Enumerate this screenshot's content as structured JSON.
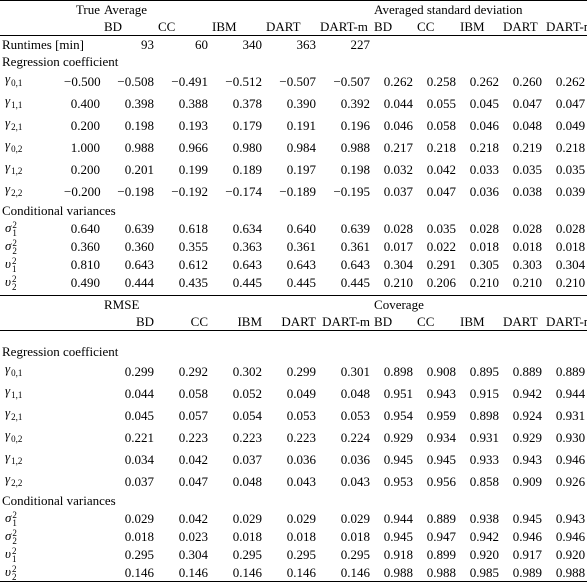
{
  "top": {
    "header": {
      "true": "True",
      "group_left": "Average",
      "group_right": "Averaged standard deviation",
      "columns_left": [
        "BD",
        "CC",
        "IBM",
        "DART",
        "DART-m"
      ],
      "columns_right": [
        "BD",
        "CC",
        "IBM",
        "DART",
        "DART-m"
      ]
    },
    "runtimes": {
      "label": "Runtimes [min]",
      "values": [
        "93",
        "60",
        "340",
        "363",
        "227"
      ]
    },
    "sections": [
      {
        "title": "Regression coefficient",
        "rows": [
          {
            "label": {
              "sym": "γ",
              "sub": "0,1"
            },
            "true": "−0.500",
            "left": [
              "−0.508",
              "−0.491",
              "−0.512",
              "−0.507",
              "−0.507"
            ],
            "right": [
              "0.262",
              "0.258",
              "0.262",
              "0.260",
              "0.262"
            ]
          },
          {
            "label": {
              "sym": "γ",
              "sub": "1,1"
            },
            "true": "0.400",
            "left": [
              "0.398",
              "0.388",
              "0.378",
              "0.390",
              "0.392"
            ],
            "right": [
              "0.044",
              "0.055",
              "0.045",
              "0.047",
              "0.047"
            ]
          },
          {
            "label": {
              "sym": "γ",
              "sub": "2,1"
            },
            "true": "0.200",
            "left": [
              "0.198",
              "0.193",
              "0.179",
              "0.191",
              "0.196"
            ],
            "right": [
              "0.046",
              "0.058",
              "0.046",
              "0.048",
              "0.049"
            ]
          },
          {
            "label": {
              "sym": "γ",
              "sub": "0,2"
            },
            "true": "1.000",
            "left": [
              "0.988",
              "0.966",
              "0.980",
              "0.984",
              "0.988"
            ],
            "right": [
              "0.217",
              "0.218",
              "0.218",
              "0.219",
              "0.218"
            ]
          },
          {
            "label": {
              "sym": "γ",
              "sub": "1,2"
            },
            "true": "0.200",
            "left": [
              "0.201",
              "0.199",
              "0.189",
              "0.197",
              "0.198"
            ],
            "right": [
              "0.032",
              "0.042",
              "0.033",
              "0.035",
              "0.035"
            ]
          },
          {
            "label": {
              "sym": "γ",
              "sub": "2,2"
            },
            "true": "−0.200",
            "left": [
              "−0.198",
              "−0.192",
              "−0.174",
              "−0.189",
              "−0.195"
            ],
            "right": [
              "0.037",
              "0.047",
              "0.036",
              "0.038",
              "0.039"
            ]
          }
        ]
      },
      {
        "title": "Conditional variances",
        "rows": [
          {
            "label": {
              "sym": "σ",
              "sup": "2",
              "sub": "1"
            },
            "true": "0.640",
            "left": [
              "0.639",
              "0.618",
              "0.634",
              "0.640",
              "0.639"
            ],
            "right": [
              "0.028",
              "0.035",
              "0.028",
              "0.028",
              "0.028"
            ]
          },
          {
            "label": {
              "sym": "σ",
              "sup": "2",
              "sub": "2"
            },
            "true": "0.360",
            "left": [
              "0.360",
              "0.355",
              "0.363",
              "0.361",
              "0.361"
            ],
            "right": [
              "0.017",
              "0.022",
              "0.018",
              "0.018",
              "0.018"
            ]
          },
          {
            "label": {
              "sym": "υ",
              "sup": "2",
              "sub": "1"
            },
            "true": "0.810",
            "left": [
              "0.643",
              "0.612",
              "0.643",
              "0.643",
              "0.643"
            ],
            "right": [
              "0.304",
              "0.291",
              "0.305",
              "0.303",
              "0.304"
            ]
          },
          {
            "label": {
              "sym": "υ",
              "sup": "2",
              "sub": "2"
            },
            "true": "0.490",
            "left": [
              "0.444",
              "0.435",
              "0.445",
              "0.445",
              "0.445"
            ],
            "right": [
              "0.210",
              "0.206",
              "0.210",
              "0.210",
              "0.210"
            ]
          }
        ]
      }
    ]
  },
  "bottom": {
    "header": {
      "group_left": "RMSE",
      "group_right": "Coverage",
      "columns_left": [
        "BD",
        "CC",
        "IBM",
        "DART",
        "DART-m"
      ],
      "columns_right": [
        "BD",
        "CC",
        "IBM",
        "DART",
        "DART-m"
      ]
    },
    "sections": [
      {
        "title": "Regression coefficient",
        "rows": [
          {
            "label": {
              "sym": "γ",
              "sub": "0,1"
            },
            "left": [
              "0.299",
              "0.292",
              "0.302",
              "0.299",
              "0.301"
            ],
            "right": [
              "0.898",
              "0.908",
              "0.895",
              "0.889",
              "0.889"
            ]
          },
          {
            "label": {
              "sym": "γ",
              "sub": "1,1"
            },
            "left": [
              "0.044",
              "0.058",
              "0.052",
              "0.049",
              "0.048"
            ],
            "right": [
              "0.951",
              "0.943",
              "0.915",
              "0.942",
              "0.944"
            ]
          },
          {
            "label": {
              "sym": "γ",
              "sub": "2,1"
            },
            "left": [
              "0.045",
              "0.057",
              "0.054",
              "0.053",
              "0.053"
            ],
            "right": [
              "0.954",
              "0.959",
              "0.898",
              "0.924",
              "0.931"
            ]
          },
          {
            "label": {
              "sym": "γ",
              "sub": "0,2"
            },
            "left": [
              "0.221",
              "0.223",
              "0.223",
              "0.223",
              "0.224"
            ],
            "right": [
              "0.929",
              "0.934",
              "0.931",
              "0.929",
              "0.930"
            ]
          },
          {
            "label": {
              "sym": "γ",
              "sub": "1,2"
            },
            "left": [
              "0.034",
              "0.042",
              "0.037",
              "0.036",
              "0.036"
            ],
            "right": [
              "0.945",
              "0.945",
              "0.933",
              "0.943",
              "0.946"
            ]
          },
          {
            "label": {
              "sym": "γ",
              "sub": "2,2"
            },
            "left": [
              "0.037",
              "0.047",
              "0.048",
              "0.043",
              "0.043"
            ],
            "right": [
              "0.953",
              "0.956",
              "0.858",
              "0.909",
              "0.926"
            ]
          }
        ]
      },
      {
        "title": "Conditional variances",
        "rows": [
          {
            "label": {
              "sym": "σ",
              "sup": "2",
              "sub": "1"
            },
            "left": [
              "0.029",
              "0.042",
              "0.029",
              "0.029",
              "0.029"
            ],
            "right": [
              "0.944",
              "0.889",
              "0.938",
              "0.945",
              "0.943"
            ]
          },
          {
            "label": {
              "sym": "σ",
              "sup": "2",
              "sub": "2"
            },
            "left": [
              "0.018",
              "0.023",
              "0.018",
              "0.018",
              "0.018"
            ],
            "right": [
              "0.945",
              "0.947",
              "0.942",
              "0.946",
              "0.946"
            ]
          },
          {
            "label": {
              "sym": "υ",
              "sup": "2",
              "sub": "1"
            },
            "left": [
              "0.295",
              "0.304",
              "0.295",
              "0.295",
              "0.295"
            ],
            "right": [
              "0.918",
              "0.899",
              "0.920",
              "0.917",
              "0.920"
            ]
          },
          {
            "label": {
              "sym": "υ",
              "sup": "2",
              "sub": "2"
            },
            "left": [
              "0.146",
              "0.146",
              "0.146",
              "0.146",
              "0.146"
            ],
            "right": [
              "0.988",
              "0.988",
              "0.985",
              "0.989",
              "0.988"
            ]
          }
        ]
      }
    ]
  }
}
